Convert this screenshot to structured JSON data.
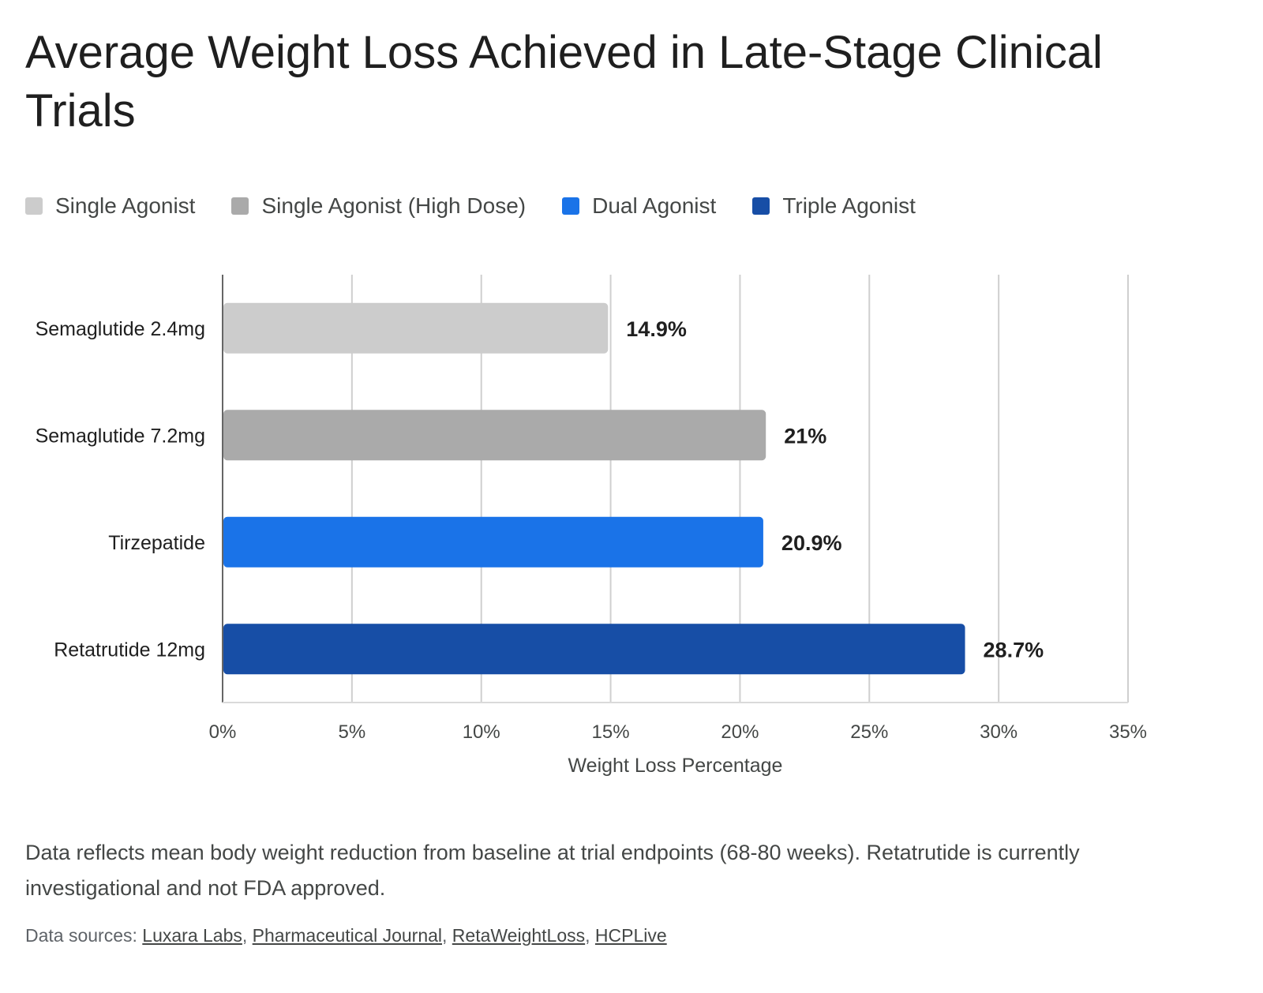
{
  "title": "Average Weight Loss Achieved in Late-Stage Clinical Trials",
  "legend": [
    {
      "label": "Single Agonist",
      "color": "#cccccc"
    },
    {
      "label": "Single Agonist (High Dose)",
      "color": "#aaaaaa"
    },
    {
      "label": "Dual Agonist",
      "color": "#1a73e8"
    },
    {
      "label": "Triple Agonist",
      "color": "#174ea6"
    }
  ],
  "chart_data": {
    "type": "bar",
    "orientation": "horizontal",
    "categories": [
      "Semaglutide 2.4mg",
      "Semaglutide 7.2mg",
      "Tirzepatide",
      "Retatrutide 12mg"
    ],
    "values": [
      14.9,
      21,
      20.9,
      28.7
    ],
    "data_labels": [
      "14.9%",
      "21%",
      "20.9%",
      "28.7%"
    ],
    "bar_colors": [
      "#cccccc",
      "#aaaaaa",
      "#1a73e8",
      "#174ea6"
    ],
    "bar_groups": [
      "Single Agonist",
      "Single Agonist (High Dose)",
      "Dual Agonist",
      "Triple Agonist"
    ],
    "xlim": [
      0,
      35
    ],
    "xticks": [
      0,
      5,
      10,
      15,
      20,
      25,
      30,
      35
    ],
    "xtick_labels": [
      "0%",
      "5%",
      "10%",
      "15%",
      "20%",
      "25%",
      "30%",
      "35%"
    ],
    "xlabel": "Weight Loss Percentage",
    "ylabel": "",
    "grid": true,
    "legend_position": "top-left"
  },
  "footnote": "Data reflects mean body weight reduction from baseline at trial endpoints (68-80 weeks). Retatrutide is currently investigational and not FDA approved.",
  "sources": {
    "prefix": "Data sources:",
    "separator": ", ",
    "links": [
      "Luxara Labs",
      "Pharmaceutical Journal",
      "RetaWeightLoss",
      "HCPLive"
    ]
  }
}
